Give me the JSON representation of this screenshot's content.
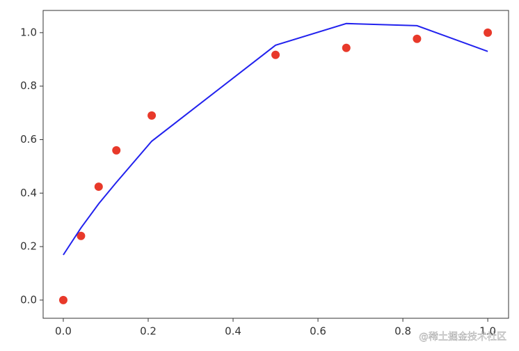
{
  "chart_data": {
    "type": "scatter",
    "x": [
      0,
      0.0417,
      0.0833,
      0.125,
      0.2083,
      0.5,
      0.6667,
      0.8333,
      1.0
    ],
    "series": [
      {
        "type": "scatter",
        "color": "#e8392a",
        "values": [
          0,
          0.24,
          0.424,
          0.56,
          0.69,
          0.917,
          0.943,
          0.977,
          1.0
        ]
      },
      {
        "type": "line",
        "color": "#2222ee",
        "values": [
          0.169,
          0.27,
          0.36,
          0.44,
          0.594,
          0.953,
          1.034,
          1.026,
          0.93
        ]
      }
    ],
    "xlim": [
      -0.0475,
      1.049
    ],
    "ylim": [
      -0.068,
      1.083
    ],
    "xticks": [
      {
        "value": 0,
        "label": "0.0"
      },
      0.2,
      0.4,
      0.6,
      0.8,
      {
        "value": 1,
        "label": "1.0"
      }
    ],
    "yticks": [
      {
        "value": 0,
        "label": "0.0"
      },
      0.2,
      0.4,
      0.6,
      0.8,
      {
        "value": 1,
        "label": "1.0"
      }
    ],
    "watermark": "@稀土掘金技术社区"
  }
}
